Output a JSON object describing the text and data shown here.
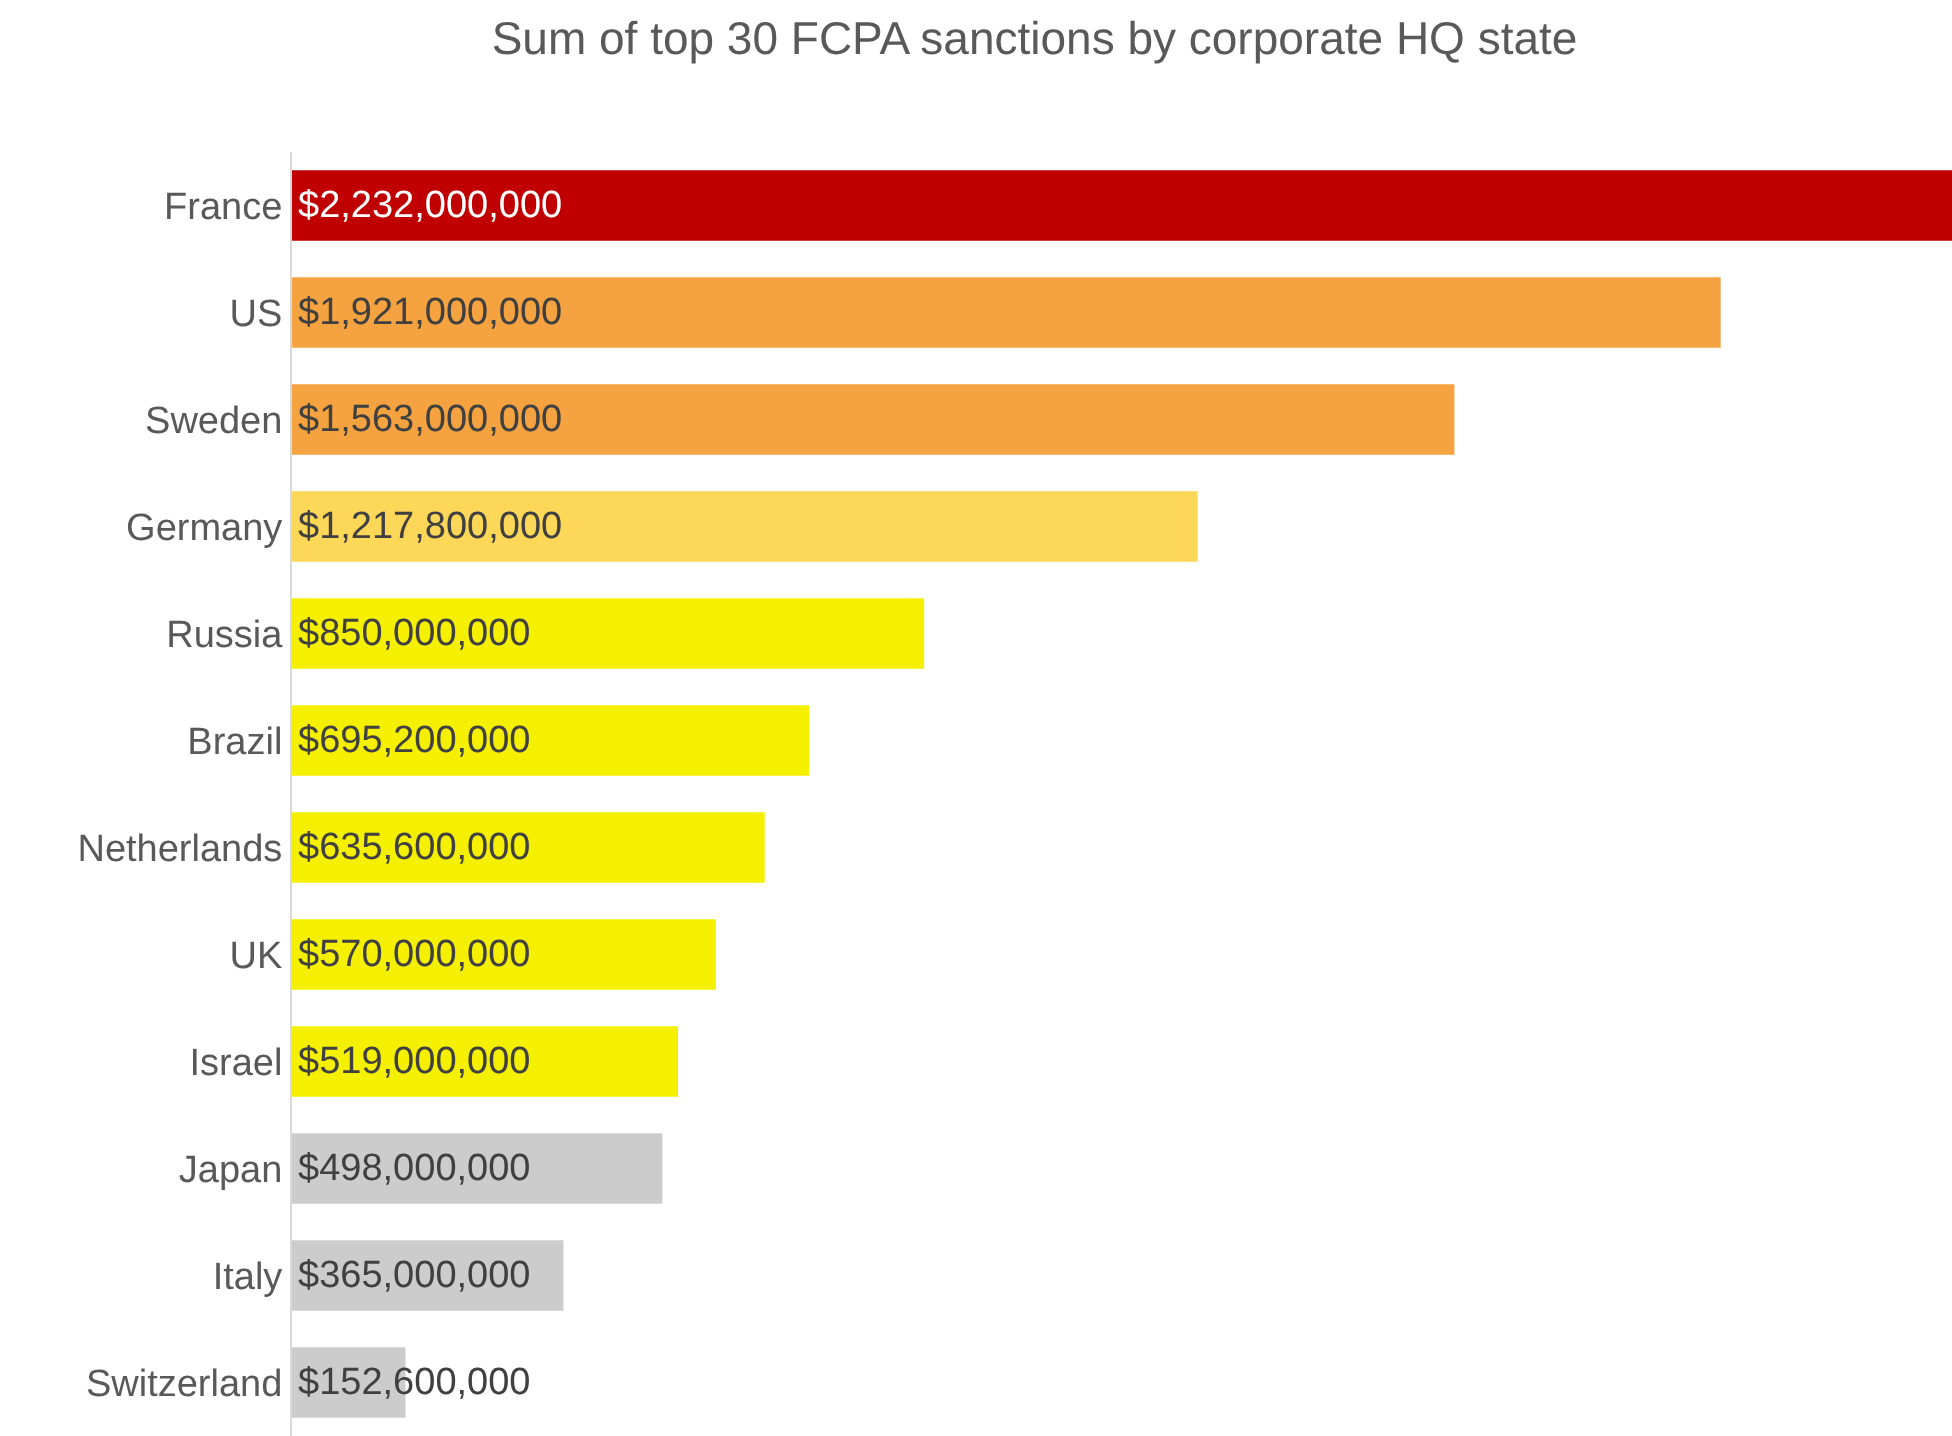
{
  "chart_data": {
    "type": "bar",
    "orientation": "horizontal",
    "title": "Sum of top 30 FCPA sanctions by corporate HQ state",
    "categories": [
      "France",
      "US",
      "Sweden",
      "Germany",
      "Russia",
      "Brazil",
      "Netherlands",
      "UK",
      "Israel",
      "Japan",
      "Italy",
      "Switzerland"
    ],
    "values": [
      2232000000,
      1921000000,
      1563000000,
      1217800000,
      850000000,
      695200000,
      635600000,
      570000000,
      519000000,
      498000000,
      365000000,
      152600000
    ],
    "value_labels": [
      "$2,232,000,000",
      "$1,921,000,000",
      "$1,563,000,000",
      "$1,217,800,000",
      "$850,000,000",
      "$695,200,000",
      "$635,600,000",
      "$570,000,000",
      "$519,000,000",
      "$498,000,000",
      "$365,000,000",
      "$152,600,000"
    ],
    "colors": [
      "#c00000",
      "#f4a340",
      "#f4a340",
      "#fdd757",
      "#f5ef00",
      "#f5ef00",
      "#f5ef00",
      "#f5ef00",
      "#f5ef00",
      "#cccccc",
      "#cccccc",
      "#cccccc"
    ],
    "xlim": [
      0,
      2232000000
    ],
    "tick_labels": "y",
    "legend": false
  }
}
